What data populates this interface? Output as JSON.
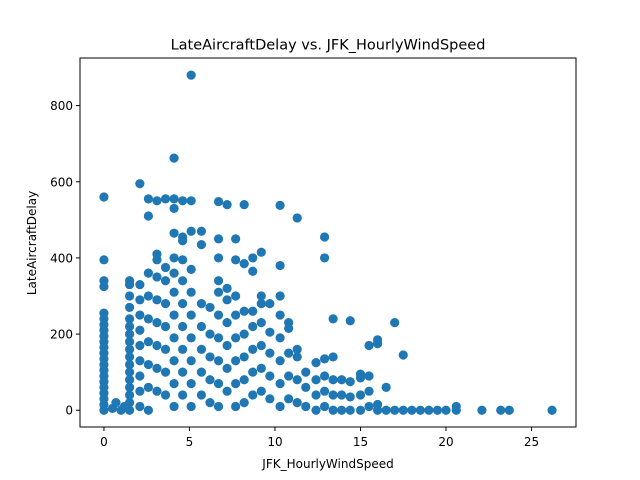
{
  "chart_data": {
    "type": "scatter",
    "title": "LateAircraftDelay vs. JFK_HourlyWindSpeed",
    "xlabel": "JFK_HourlyWindSpeed",
    "ylabel": "LateAircraftDelay",
    "xlim": [
      -1.4,
      27.6
    ],
    "ylim": [
      -44,
      925
    ],
    "xticks": [
      0,
      5,
      10,
      15,
      20,
      25
    ],
    "yticks": [
      0,
      200,
      400,
      600,
      800
    ],
    "grid": false,
    "legend": "none",
    "color": "#1f77b4",
    "series": [
      {
        "points": [
          [
            0,
            560
          ],
          [
            0,
            395
          ],
          [
            0,
            340
          ],
          [
            0,
            325
          ],
          [
            0,
            255
          ],
          [
            0,
            240
          ],
          [
            0,
            225
          ],
          [
            0,
            210
          ],
          [
            0,
            195
          ],
          [
            0,
            180
          ],
          [
            0,
            165
          ],
          [
            0,
            150
          ],
          [
            0,
            135
          ],
          [
            0,
            120
          ],
          [
            0,
            105
          ],
          [
            0,
            90
          ],
          [
            0,
            75
          ],
          [
            0,
            60
          ],
          [
            0,
            45
          ],
          [
            0,
            30
          ],
          [
            0,
            15
          ],
          [
            0,
            0
          ],
          [
            0.5,
            5
          ],
          [
            0.7,
            20
          ],
          [
            1,
            0
          ],
          [
            1.2,
            10
          ],
          [
            1.5,
            340
          ],
          [
            1.5,
            330
          ],
          [
            1.5,
            300
          ],
          [
            1.5,
            270
          ],
          [
            1.5,
            240
          ],
          [
            1.5,
            220
          ],
          [
            1.5,
            200
          ],
          [
            1.5,
            180
          ],
          [
            1.5,
            160
          ],
          [
            1.5,
            140
          ],
          [
            1.5,
            120
          ],
          [
            1.5,
            100
          ],
          [
            1.5,
            80
          ],
          [
            1.5,
            60
          ],
          [
            1.5,
            40
          ],
          [
            1.5,
            20
          ],
          [
            1.5,
            0
          ],
          [
            2.1,
            595
          ],
          [
            2.1,
            330
          ],
          [
            2.1,
            290
          ],
          [
            2.1,
            250
          ],
          [
            2.1,
            210
          ],
          [
            2.1,
            170
          ],
          [
            2.1,
            130
          ],
          [
            2.1,
            90
          ],
          [
            2.1,
            50
          ],
          [
            2.1,
            10
          ],
          [
            2.6,
            555
          ],
          [
            2.6,
            510
          ],
          [
            2.6,
            360
          ],
          [
            2.6,
            300
          ],
          [
            2.6,
            240
          ],
          [
            2.6,
            180
          ],
          [
            2.6,
            120
          ],
          [
            2.6,
            60
          ],
          [
            2.6,
            0
          ],
          [
            3.1,
            550
          ],
          [
            3.1,
            410
          ],
          [
            3.1,
            395
          ],
          [
            3.1,
            350
          ],
          [
            3.1,
            290
          ],
          [
            3.1,
            230
          ],
          [
            3.1,
            170
          ],
          [
            3.1,
            110
          ],
          [
            3.1,
            50
          ],
          [
            3.6,
            555
          ],
          [
            3.6,
            375
          ],
          [
            3.6,
            340
          ],
          [
            3.6,
            280
          ],
          [
            3.6,
            220
          ],
          [
            3.6,
            160
          ],
          [
            3.6,
            100
          ],
          [
            3.6,
            40
          ],
          [
            4.1,
            662
          ],
          [
            4.1,
            555
          ],
          [
            4.1,
            530
          ],
          [
            4.1,
            465
          ],
          [
            4.1,
            400
          ],
          [
            4.1,
            360
          ],
          [
            4.1,
            310
          ],
          [
            4.1,
            250
          ],
          [
            4.1,
            190
          ],
          [
            4.1,
            130
          ],
          [
            4.1,
            70
          ],
          [
            4.1,
            10
          ],
          [
            4.6,
            550
          ],
          [
            4.6,
            455
          ],
          [
            4.6,
            445
          ],
          [
            4.6,
            395
          ],
          [
            4.6,
            340
          ],
          [
            4.6,
            280
          ],
          [
            4.6,
            220
          ],
          [
            4.6,
            160
          ],
          [
            4.6,
            100
          ],
          [
            4.6,
            40
          ],
          [
            5.1,
            880
          ],
          [
            5.1,
            550
          ],
          [
            5.1,
            470
          ],
          [
            5.1,
            370
          ],
          [
            5.1,
            310
          ],
          [
            5.1,
            250
          ],
          [
            5.1,
            190
          ],
          [
            5.1,
            130
          ],
          [
            5.1,
            70
          ],
          [
            5.1,
            10
          ],
          [
            5.7,
            470
          ],
          [
            5.7,
            435
          ],
          [
            5.7,
            280
          ],
          [
            5.7,
            220
          ],
          [
            5.7,
            160
          ],
          [
            5.7,
            100
          ],
          [
            5.7,
            40
          ],
          [
            6.2,
            270
          ],
          [
            6.2,
            200
          ],
          [
            6.2,
            140
          ],
          [
            6.2,
            80
          ],
          [
            6.2,
            20
          ],
          [
            6.7,
            548
          ],
          [
            6.7,
            450
          ],
          [
            6.7,
            400
          ],
          [
            6.7,
            340
          ],
          [
            6.7,
            310
          ],
          [
            6.7,
            250
          ],
          [
            6.7,
            190
          ],
          [
            6.7,
            130
          ],
          [
            6.7,
            70
          ],
          [
            6.7,
            10
          ],
          [
            7.2,
            540
          ],
          [
            7.2,
            320
          ],
          [
            7.2,
            290
          ],
          [
            7.2,
            230
          ],
          [
            7.2,
            170
          ],
          [
            7.2,
            110
          ],
          [
            7.2,
            50
          ],
          [
            7.7,
            450
          ],
          [
            7.7,
            395
          ],
          [
            7.7,
            300
          ],
          [
            7.7,
            250
          ],
          [
            7.7,
            190
          ],
          [
            7.7,
            130
          ],
          [
            7.7,
            70
          ],
          [
            7.7,
            10
          ],
          [
            8.2,
            540
          ],
          [
            8.2,
            385
          ],
          [
            8.2,
            260
          ],
          [
            8.2,
            200
          ],
          [
            8.2,
            140
          ],
          [
            8.2,
            80
          ],
          [
            8.2,
            20
          ],
          [
            8.7,
            400
          ],
          [
            8.7,
            365
          ],
          [
            8.7,
            260
          ],
          [
            8.7,
            220
          ],
          [
            8.7,
            160
          ],
          [
            8.7,
            100
          ],
          [
            8.7,
            40
          ],
          [
            9.2,
            415
          ],
          [
            9.2,
            300
          ],
          [
            9.2,
            280
          ],
          [
            9.2,
            230
          ],
          [
            9.2,
            170
          ],
          [
            9.2,
            110
          ],
          [
            9.2,
            50
          ],
          [
            9.7,
            280
          ],
          [
            9.7,
            205
          ],
          [
            9.7,
            150
          ],
          [
            9.7,
            90
          ],
          [
            9.7,
            30
          ],
          [
            10.3,
            538
          ],
          [
            10.3,
            380
          ],
          [
            10.3,
            300
          ],
          [
            10.3,
            250
          ],
          [
            10.3,
            190
          ],
          [
            10.3,
            130
          ],
          [
            10.3,
            70
          ],
          [
            10.3,
            10
          ],
          [
            10.8,
            230
          ],
          [
            10.8,
            215
          ],
          [
            10.8,
            150
          ],
          [
            10.8,
            90
          ],
          [
            10.8,
            30
          ],
          [
            11.3,
            505
          ],
          [
            11.3,
            160
          ],
          [
            11.3,
            140
          ],
          [
            11.3,
            80
          ],
          [
            11.3,
            20
          ],
          [
            11.8,
            100
          ],
          [
            11.8,
            60
          ],
          [
            11.8,
            10
          ],
          [
            12.4,
            125
          ],
          [
            12.4,
            80
          ],
          [
            12.4,
            40
          ],
          [
            12.4,
            0
          ],
          [
            12.9,
            455
          ],
          [
            12.9,
            400
          ],
          [
            12.9,
            135
          ],
          [
            12.9,
            90
          ],
          [
            12.9,
            50
          ],
          [
            12.9,
            10
          ],
          [
            13.4,
            240
          ],
          [
            13.4,
            140
          ],
          [
            13.4,
            80
          ],
          [
            13.4,
            40
          ],
          [
            13.4,
            0
          ],
          [
            13.9,
            80
          ],
          [
            13.9,
            40
          ],
          [
            13.9,
            0
          ],
          [
            14.4,
            235
          ],
          [
            14.4,
            75
          ],
          [
            14.4,
            35
          ],
          [
            14.4,
            0
          ],
          [
            15,
            95
          ],
          [
            15,
            85
          ],
          [
            15,
            40
          ],
          [
            15,
            0
          ],
          [
            15.5,
            170
          ],
          [
            15.5,
            90
          ],
          [
            15.5,
            50
          ],
          [
            15.5,
            10
          ],
          [
            16,
            185
          ],
          [
            16,
            175
          ],
          [
            16,
            15
          ],
          [
            16,
            0
          ],
          [
            16.5,
            60
          ],
          [
            16.5,
            0
          ],
          [
            17,
            230
          ],
          [
            17,
            0
          ],
          [
            17.5,
            145
          ],
          [
            17.5,
            0
          ],
          [
            18,
            0
          ],
          [
            18.5,
            0
          ],
          [
            19,
            0
          ],
          [
            19.5,
            0
          ],
          [
            20,
            0
          ],
          [
            20.6,
            10
          ],
          [
            20.6,
            0
          ],
          [
            22.1,
            0
          ],
          [
            23.2,
            0
          ],
          [
            23.7,
            0
          ],
          [
            26.2,
            0
          ]
        ]
      }
    ]
  }
}
